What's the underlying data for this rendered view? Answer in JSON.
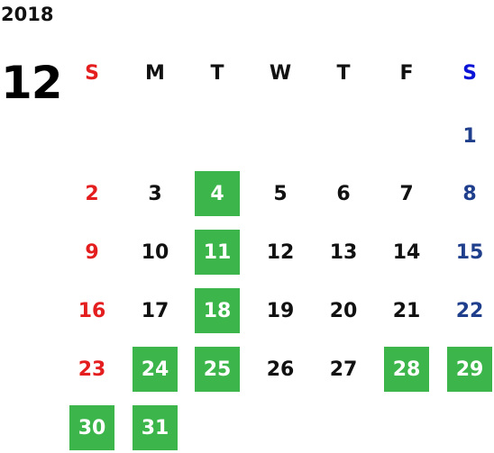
{
  "calendar": {
    "year": "2018",
    "month": "12",
    "weekdays": [
      "S",
      "M",
      "T",
      "W",
      "T",
      "F",
      "S"
    ],
    "weeks": [
      [
        "",
        "",
        "",
        "",
        "",
        "",
        "1"
      ],
      [
        "2",
        "3",
        "4",
        "5",
        "6",
        "7",
        "8"
      ],
      [
        "9",
        "10",
        "11",
        "12",
        "13",
        "14",
        "15"
      ],
      [
        "16",
        "17",
        "18",
        "19",
        "20",
        "21",
        "22"
      ],
      [
        "23",
        "24",
        "25",
        "26",
        "27",
        "28",
        "29"
      ],
      [
        "30",
        "31",
        "",
        "",
        "",
        "",
        ""
      ]
    ],
    "highlighted_days": [
      "4",
      "11",
      "18",
      "24",
      "25",
      "28",
      "29",
      "30",
      "31"
    ],
    "colors": {
      "highlight": "#3cb54a",
      "sunday": "#e41e1e",
      "saturday": "#1f3f8c",
      "saturday_header": "#0a14d6",
      "weekday": "#111111"
    }
  }
}
